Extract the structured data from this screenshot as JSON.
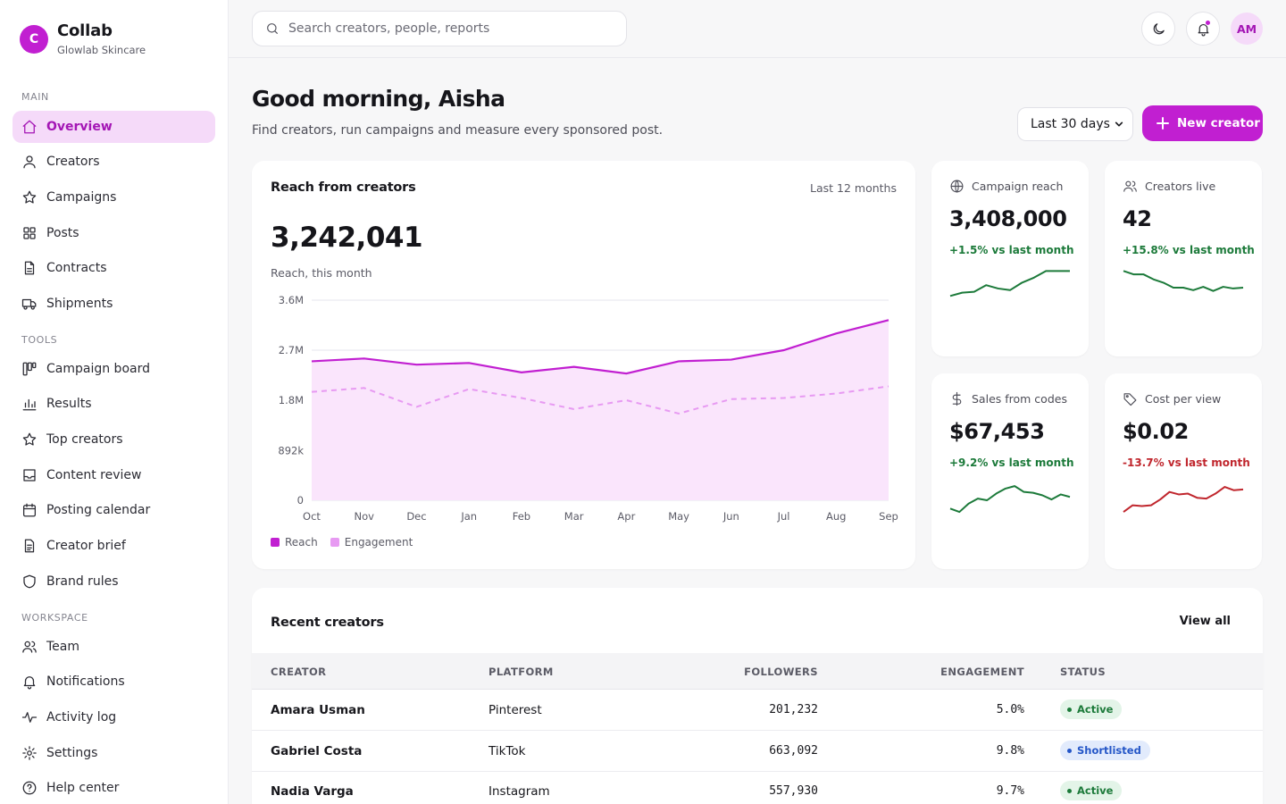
{
  "brand": {
    "logo_letter": "C",
    "name": "Collab",
    "subtitle": "Glowlab Skincare"
  },
  "sidebar": {
    "sections": [
      {
        "label": "MAIN",
        "items": [
          {
            "label": "Overview",
            "icon": "home-icon",
            "active": true
          },
          {
            "label": "Creators",
            "icon": "user-icon"
          },
          {
            "label": "Campaigns",
            "icon": "star-icon"
          },
          {
            "label": "Posts",
            "icon": "grid-icon"
          },
          {
            "label": "Contracts",
            "icon": "file-icon"
          },
          {
            "label": "Shipments",
            "icon": "truck-icon"
          }
        ]
      },
      {
        "label": "TOOLS",
        "items": [
          {
            "label": "Campaign board",
            "icon": "kanban-icon"
          },
          {
            "label": "Results",
            "icon": "bar-chart-icon"
          },
          {
            "label": "Top creators",
            "icon": "star-icon"
          },
          {
            "label": "Content review",
            "icon": "inbox-icon"
          },
          {
            "label": "Posting calendar",
            "icon": "calendar-icon"
          },
          {
            "label": "Creator brief",
            "icon": "document-icon"
          },
          {
            "label": "Brand rules",
            "icon": "shield-icon"
          }
        ]
      },
      {
        "label": "WORKSPACE",
        "items": [
          {
            "label": "Team",
            "icon": "users-icon"
          },
          {
            "label": "Notifications",
            "icon": "bell-icon"
          },
          {
            "label": "Activity log",
            "icon": "activity-icon"
          },
          {
            "label": "Settings",
            "icon": "gear-icon"
          },
          {
            "label": "Help center",
            "icon": "help-icon"
          }
        ]
      }
    ]
  },
  "topbar": {
    "search_placeholder": "Search creators, people, reports",
    "theme_icon": "moon-icon",
    "notification_icon": "bell-icon",
    "avatar_initials": "AM"
  },
  "header": {
    "title": "Good morning, Aisha",
    "subtitle": "Find creators, run campaigns and measure every sponsored post.",
    "range_selected": "Last 30 days",
    "new_button_label": "New creator"
  },
  "reach_card": {
    "title": "Reach from creators",
    "meta": "Last 12 months",
    "value": "3,242,041",
    "value_label": "Reach, this month"
  },
  "chart_data": {
    "type": "area",
    "categories": [
      "Oct",
      "Nov",
      "Dec",
      "Jan",
      "Feb",
      "Mar",
      "Apr",
      "May",
      "Jun",
      "Jul",
      "Aug",
      "Sep"
    ],
    "ylim": [
      0,
      3600000
    ],
    "y_ticks": [
      "0",
      "892k",
      "1.8M",
      "2.7M",
      "3.6M"
    ],
    "y_tick_values": [
      0,
      892000,
      1800000,
      2700000,
      3600000
    ],
    "grid": true,
    "legend_position": "bottom-left",
    "series": [
      {
        "name": "Reach",
        "color": "#c11fd1",
        "style": "solid-filled",
        "values": [
          2500000,
          2550000,
          2440000,
          2470000,
          2300000,
          2400000,
          2280000,
          2500000,
          2530000,
          2700000,
          3000000,
          3242041
        ]
      },
      {
        "name": "Engagement",
        "color": "#e79af2",
        "style": "dashed",
        "values": [
          1950000,
          2020000,
          1680000,
          2000000,
          1840000,
          1640000,
          1800000,
          1560000,
          1820000,
          1840000,
          1920000,
          2050000
        ]
      }
    ]
  },
  "stats": [
    {
      "label": "Campaign reach",
      "icon": "globe-icon",
      "value": "3,408,000",
      "delta": "+1.5% vs last month",
      "trend": "up",
      "color": "#1c7a3a",
      "spark": [
        20,
        24,
        25,
        33,
        29,
        27,
        36,
        42,
        50,
        50,
        50
      ]
    },
    {
      "label": "Creators live",
      "icon": "users-icon",
      "value": "42",
      "delta": "+15.8% vs last month",
      "trend": "up",
      "color": "#1c7a3a",
      "spark": [
        50,
        46,
        46,
        40,
        36,
        30,
        30,
        27,
        31,
        26,
        31,
        29,
        30
      ]
    },
    {
      "label": "Sales from codes",
      "icon": "dollar-icon",
      "value": "$67,453",
      "delta": "+9.2% vs last month",
      "trend": "up",
      "color": "#1c7a3a",
      "spark": [
        20,
        16,
        26,
        32,
        30,
        38,
        44,
        47,
        40,
        39,
        36,
        31,
        37,
        34
      ]
    },
    {
      "label": "Cost per view",
      "icon": "tag-icon",
      "value": "$0.02",
      "delta": "-13.7% vs last month",
      "trend": "down",
      "color": "#c0262d",
      "spark": [
        16,
        24,
        23,
        24,
        31,
        40,
        37,
        38,
        33,
        32,
        38,
        46,
        42,
        43
      ]
    }
  ],
  "table": {
    "title": "Recent creators",
    "view_all": "View all",
    "columns": [
      "CREATOR",
      "PLATFORM",
      "FOLLOWERS",
      "ENGAGEMENT",
      "STATUS"
    ],
    "rows": [
      {
        "creator": "Amara Usman",
        "platform": "Pinterest",
        "followers": "201,232",
        "engagement": "5.0%",
        "status": "Active"
      },
      {
        "creator": "Gabriel Costa",
        "platform": "TikTok",
        "followers": "663,092",
        "engagement": "9.8%",
        "status": "Shortlisted"
      },
      {
        "creator": "Nadia Varga",
        "platform": "Instagram",
        "followers": "557,930",
        "engagement": "9.7%",
        "status": "Active"
      }
    ]
  }
}
